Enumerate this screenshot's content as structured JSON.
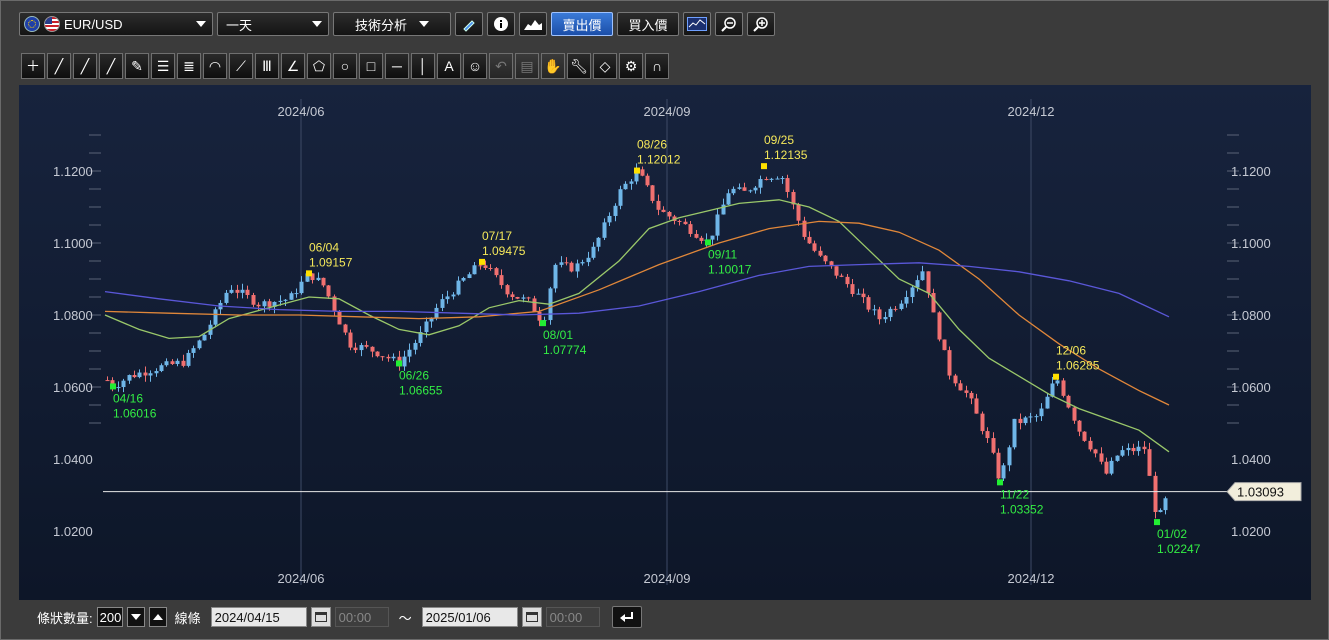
{
  "toolbar": {
    "symbol": "EUR/USD",
    "period": "一天",
    "analysis_label": "技術分析",
    "sell_price_label": "賣出價",
    "buy_price_label": "買入價"
  },
  "tools": [
    "crosshair",
    "line",
    "ray-line",
    "extended-line",
    "ruler",
    "horizontal-lines",
    "channel",
    "fibonacci-arc",
    "fibonacci-fan",
    "vertical-lines",
    "gann-fan",
    "pentagon",
    "circle",
    "rectangle",
    "horizontal-line",
    "vertical-line",
    "text",
    "icon",
    "undo",
    "layers",
    "hand",
    "wrench",
    "eraser",
    "settings",
    "magnet"
  ],
  "chart": {
    "y_ticks": [
      "1.1200",
      "1.1000",
      "1.0800",
      "1.0600",
      "1.0400",
      "1.0200"
    ],
    "x_ticks": [
      "2024/06",
      "2024/09",
      "2024/12"
    ],
    "current_price": "1.03093",
    "markers": [
      {
        "type": "low",
        "date": "04/16",
        "price": "1.06016"
      },
      {
        "type": "high",
        "date": "06/04",
        "price": "1.09157"
      },
      {
        "type": "low",
        "date": "06/26",
        "price": "1.06655"
      },
      {
        "type": "high",
        "date": "07/17",
        "price": "1.09475"
      },
      {
        "type": "low",
        "date": "08/01",
        "price": "1.07774"
      },
      {
        "type": "high",
        "date": "08/26",
        "price": "1.12012"
      },
      {
        "type": "low",
        "date": "09/11",
        "price": "1.10017"
      },
      {
        "type": "high",
        "date": "09/25",
        "price": "1.12135"
      },
      {
        "type": "low",
        "date": "11/22",
        "price": "1.03352"
      },
      {
        "type": "high",
        "date": "12/06",
        "price": "1.06285"
      },
      {
        "type": "low",
        "date": "01/02",
        "price": "1.02247"
      }
    ],
    "colors": {
      "up": "#6fb6e8",
      "down": "#f07070",
      "ma_short": "#9ac86a",
      "ma_mid": "#e0873a",
      "ma_long": "#5a57d8",
      "high_marker": "#ffe000",
      "low_marker": "#22ee33"
    }
  },
  "bottom": {
    "bars_label": "條狀數量:",
    "bars_value": "200",
    "line_label": "線條",
    "start_date": "2024/04/15",
    "start_time": "00:00",
    "tilde": "～",
    "end_date": "2025/01/06",
    "end_time": "00:00"
  }
}
